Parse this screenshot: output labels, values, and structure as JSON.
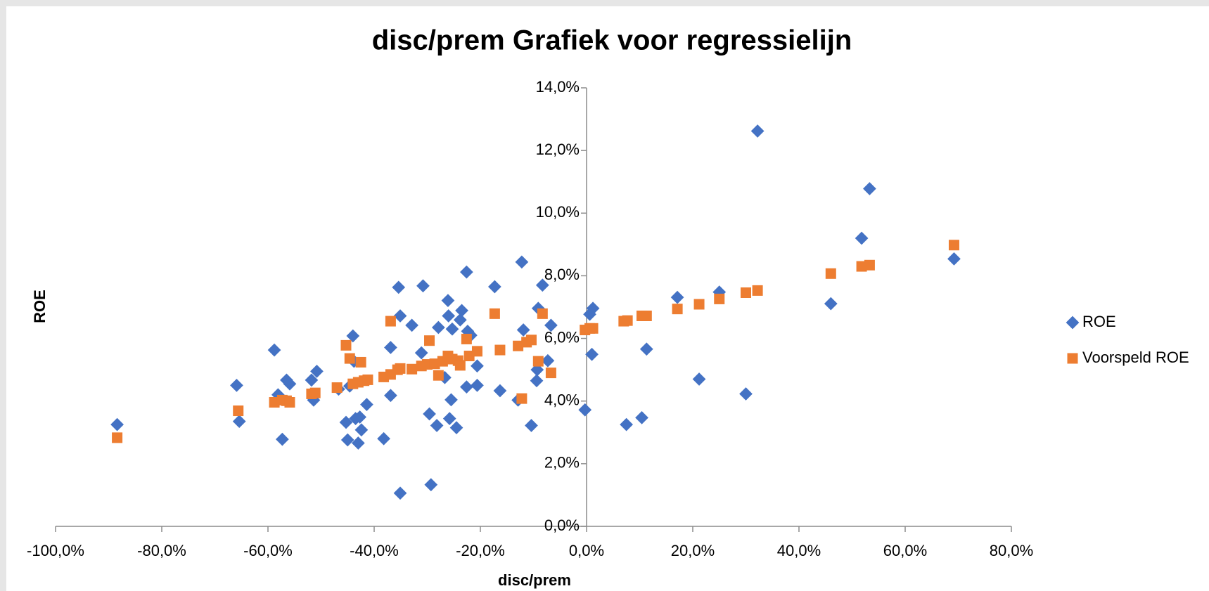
{
  "chart_data": {
    "type": "scatter",
    "title": "disc/prem Grafiek voor regressielijn",
    "x_label": "disc/prem",
    "y_label": "ROE",
    "xlim": [
      -100,
      80
    ],
    "ylim": [
      0,
      14
    ],
    "xticks": [
      {
        "value": -100,
        "label": "-100,0%"
      },
      {
        "value": -80,
        "label": "-80,0%"
      },
      {
        "value": -60,
        "label": "-60,0%"
      },
      {
        "value": -40,
        "label": "-40,0%"
      },
      {
        "value": -20,
        "label": "-20,0%"
      },
      {
        "value": 0,
        "label": "0,0%"
      },
      {
        "value": 20,
        "label": "20,0%"
      },
      {
        "value": 40,
        "label": "40,0%"
      },
      {
        "value": 60,
        "label": "60,0%"
      },
      {
        "value": 80,
        "label": "80,0%"
      }
    ],
    "yticks": [
      {
        "value": 0,
        "label": "0,0%"
      },
      {
        "value": 2,
        "label": "2,0%"
      },
      {
        "value": 4,
        "label": "4,0%"
      },
      {
        "value": 6,
        "label": "6,0%"
      },
      {
        "value": 8,
        "label": "8,0%"
      },
      {
        "value": 10,
        "label": "10,0%"
      },
      {
        "value": 12,
        "label": "12,0%"
      },
      {
        "value": 14,
        "label": "14,0%"
      }
    ],
    "grid": false,
    "legend": "right",
    "series": [
      {
        "name": "ROE",
        "color": "#4472c4",
        "marker": "diamond",
        "x": [
          -88.4,
          -65.9,
          -65.4,
          -58.8,
          -58.1,
          -57.3,
          -56.5,
          -55.9,
          -51.8,
          -51.4,
          -50.8,
          -46.7,
          -45.3,
          -45.0,
          -44.6,
          -44.0,
          -43.5,
          -43.8,
          -43.0,
          -42.7,
          -42.4,
          -41.4,
          -38.2,
          -36.9,
          -36.9,
          -35.4,
          -35.1,
          -35.1,
          -32.9,
          -31.1,
          -30.8,
          -29.6,
          -29.3,
          -28.2,
          -27.9,
          -26.7,
          -26.1,
          -26.0,
          -25.8,
          -25.5,
          -25.3,
          -24.5,
          -23.8,
          -23.5,
          -22.6,
          -22.6,
          -22.4,
          -21.8,
          -20.6,
          -20.6,
          -17.3,
          -16.3,
          -12.2,
          -11.9,
          -12.9,
          -10.4,
          -9.4,
          -9.3,
          -9.1,
          -8.3,
          -7.3,
          -6.7,
          -0.3,
          0.6,
          1.2,
          1.0,
          7.5,
          10.4,
          11.3,
          17.1,
          21.2,
          25.0,
          30.0,
          32.2,
          46.0,
          51.8,
          53.3,
          69.2
        ],
        "values": [
          3.25,
          4.5,
          3.35,
          5.63,
          4.2,
          2.78,
          4.67,
          4.55,
          4.67,
          4.03,
          4.95,
          4.38,
          3.32,
          2.76,
          4.48,
          6.08,
          3.44,
          5.27,
          2.66,
          3.49,
          3.08,
          3.89,
          2.8,
          4.18,
          5.71,
          7.63,
          1.06,
          6.72,
          6.42,
          5.54,
          7.68,
          3.59,
          1.33,
          3.22,
          6.35,
          4.75,
          7.21,
          6.72,
          3.44,
          4.04,
          6.3,
          3.15,
          6.59,
          6.89,
          8.12,
          4.45,
          6.23,
          6.1,
          5.12,
          4.5,
          7.65,
          4.33,
          8.44,
          6.27,
          4.03,
          3.22,
          4.65,
          5.0,
          6.96,
          7.7,
          5.29,
          6.42,
          3.72,
          6.77,
          6.96,
          5.49,
          3.25,
          3.47,
          5.66,
          7.31,
          4.7,
          7.48,
          4.23,
          12.62,
          7.11,
          9.2,
          10.78,
          8.54
        ]
      },
      {
        "name": "Voorspeld ROE",
        "color": "#ed7d31",
        "marker": "square",
        "x": [
          -88.4,
          -65.6,
          -58.8,
          -57.3,
          -56.5,
          -55.9,
          -51.8,
          -51.1,
          -47.0,
          -45.3,
          -44.6,
          -44.0,
          -43.0,
          -42.5,
          -41.9,
          -41.2,
          -38.2,
          -36.9,
          -36.9,
          -35.6,
          -35.1,
          -32.9,
          -31.1,
          -30.0,
          -29.6,
          -28.6,
          -27.9,
          -27.1,
          -26.1,
          -25.3,
          -24.2,
          -23.8,
          -22.6,
          -22.1,
          -20.6,
          -16.3,
          -17.3,
          -12.9,
          -12.2,
          -11.3,
          -10.4,
          -9.1,
          -8.3,
          -6.7,
          -0.3,
          0.6,
          1.2,
          7.0,
          7.7,
          10.4,
          11.3,
          17.1,
          21.2,
          25.0,
          30.0,
          32.2,
          46.0,
          51.8,
          53.3,
          69.2
        ],
        "values": [
          2.83,
          3.69,
          3.96,
          4.03,
          4.01,
          3.96,
          4.23,
          4.26,
          4.43,
          5.78,
          5.36,
          4.55,
          4.6,
          5.24,
          4.65,
          4.68,
          4.77,
          6.55,
          4.85,
          5.0,
          5.04,
          5.02,
          5.12,
          5.17,
          5.93,
          5.19,
          4.82,
          5.27,
          5.44,
          5.34,
          5.29,
          5.14,
          5.98,
          5.44,
          5.59,
          5.63,
          6.79,
          5.76,
          4.08,
          5.88,
          5.95,
          5.27,
          6.79,
          4.9,
          6.27,
          6.32,
          6.32,
          6.55,
          6.57,
          6.72,
          6.72,
          6.94,
          7.09,
          7.26,
          7.46,
          7.53,
          8.07,
          8.3,
          8.34,
          8.98
        ]
      }
    ]
  }
}
